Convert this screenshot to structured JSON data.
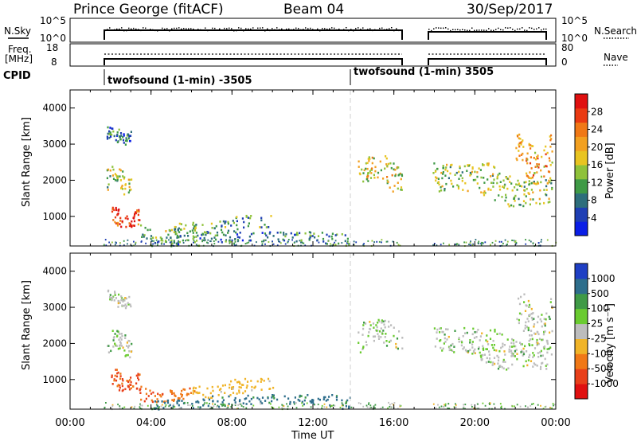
{
  "header": {
    "site": "Prince George (fitACF)",
    "beam": "Beam 04",
    "date": "30/Sep/2017"
  },
  "panels": {
    "nsky": {
      "label": "N.Sky",
      "tick_top": "10^5",
      "tick_bottom": "10^0"
    },
    "nsearch": {
      "label": "N.Search",
      "tick_top": "10^5",
      "tick_bottom": "10^0"
    },
    "freq": {
      "label_line1": "Freq.",
      "label_line2": "[MHz]",
      "tick_top": "18",
      "tick_bottom": "8"
    },
    "nave": {
      "label": "Nave",
      "tick_top": "80",
      "tick_bottom": "0"
    },
    "cpid": {
      "label": "CPID",
      "mode1": "twofsound (1-min) -3505",
      "mode2": "twofsound (1-min) 3505"
    }
  },
  "axes": {
    "xlabel": "Time UT",
    "ylabel": "Slant Range [km]",
    "xticks": [
      "00:00",
      "04:00",
      "08:00",
      "12:00",
      "16:00",
      "20:00",
      "00:00"
    ],
    "yticks": [
      "1000",
      "2000",
      "3000",
      "4000"
    ]
  },
  "colorbars": {
    "power": {
      "label": "Power [dB]",
      "ticks": [
        "4",
        "8",
        "12",
        "16",
        "20",
        "24",
        "28"
      ],
      "colors": [
        "#0a1ee6",
        "#1f3fb4",
        "#2e6e7c",
        "#3f9a46",
        "#8fc23a",
        "#e8c421",
        "#f2a020",
        "#f07816",
        "#ea3a12",
        "#e01010"
      ]
    },
    "velocity": {
      "label": "Velocity [m s⁻¹]",
      "ticks": [
        "1000",
        "500",
        "100",
        "25",
        "-25",
        "-100",
        "-500",
        "-1000"
      ],
      "colors": [
        "#1f3fc4",
        "#2e6e8c",
        "#3f9a46",
        "#6acb30",
        "#bdbdbd",
        "#f0b428",
        "#f07816",
        "#e8401a",
        "#e01010"
      ]
    }
  },
  "chart_data": {
    "type": "heatmap",
    "title": "Prince George (fitACF) Beam 04 30/Sep/2017",
    "xlabel": "Time UT",
    "ylabel": "Slant Range [km]",
    "xlim": [
      0,
      24
    ],
    "ylim": [
      180,
      4500
    ],
    "data_gaps_hours": [
      [
        0,
        1.6
      ],
      [
        16.5,
        17.9
      ]
    ],
    "mode_switch_hour": 14.0,
    "power_range_db": [
      0,
      30
    ],
    "velocity_range_ms": [
      -1000,
      1000
    ],
    "echo_regions": [
      {
        "t_start": 1.8,
        "t_end": 3.0,
        "range_km": [
          1600,
          2400
        ],
        "power_db": 14,
        "velocity": "~0 (grey)"
      },
      {
        "t_start": 1.8,
        "t_end": 3.0,
        "range_km": [
          3000,
          3500
        ],
        "power_db": 6,
        "velocity": "~0 (grey)"
      },
      {
        "t_start": 2.0,
        "t_end": 3.4,
        "range_km": [
          700,
          1300
        ],
        "power_db": 27,
        "velocity": "-300 to -800"
      },
      {
        "t_start": 3.4,
        "t_end": 6.2,
        "range_km": [
          400,
          850
        ],
        "power_db": 12,
        "velocity": "-200 to -600"
      },
      {
        "t_start": 6.0,
        "t_end": 10.0,
        "range_km": [
          500,
          1050
        ],
        "power_db": 10,
        "velocity": "-100 to 0"
      },
      {
        "t_start": 4.0,
        "t_end": 13.8,
        "range_km": [
          200,
          600
        ],
        "power_db": 8,
        "velocity": "+25 to +300"
      },
      {
        "t_start": 14.2,
        "t_end": 16.4,
        "range_km": [
          1700,
          2700
        ],
        "power_db": 16,
        "velocity": "~0 (grey)"
      },
      {
        "t_start": 17.9,
        "t_end": 23.8,
        "range_km": [
          1300,
          2500
        ],
        "power_db": 14,
        "velocity": "~0 (grey)"
      },
      {
        "t_start": 22.0,
        "t_end": 23.8,
        "range_km": [
          2000,
          3400
        ],
        "power_db": 20,
        "velocity": "~0 (grey)"
      }
    ]
  }
}
